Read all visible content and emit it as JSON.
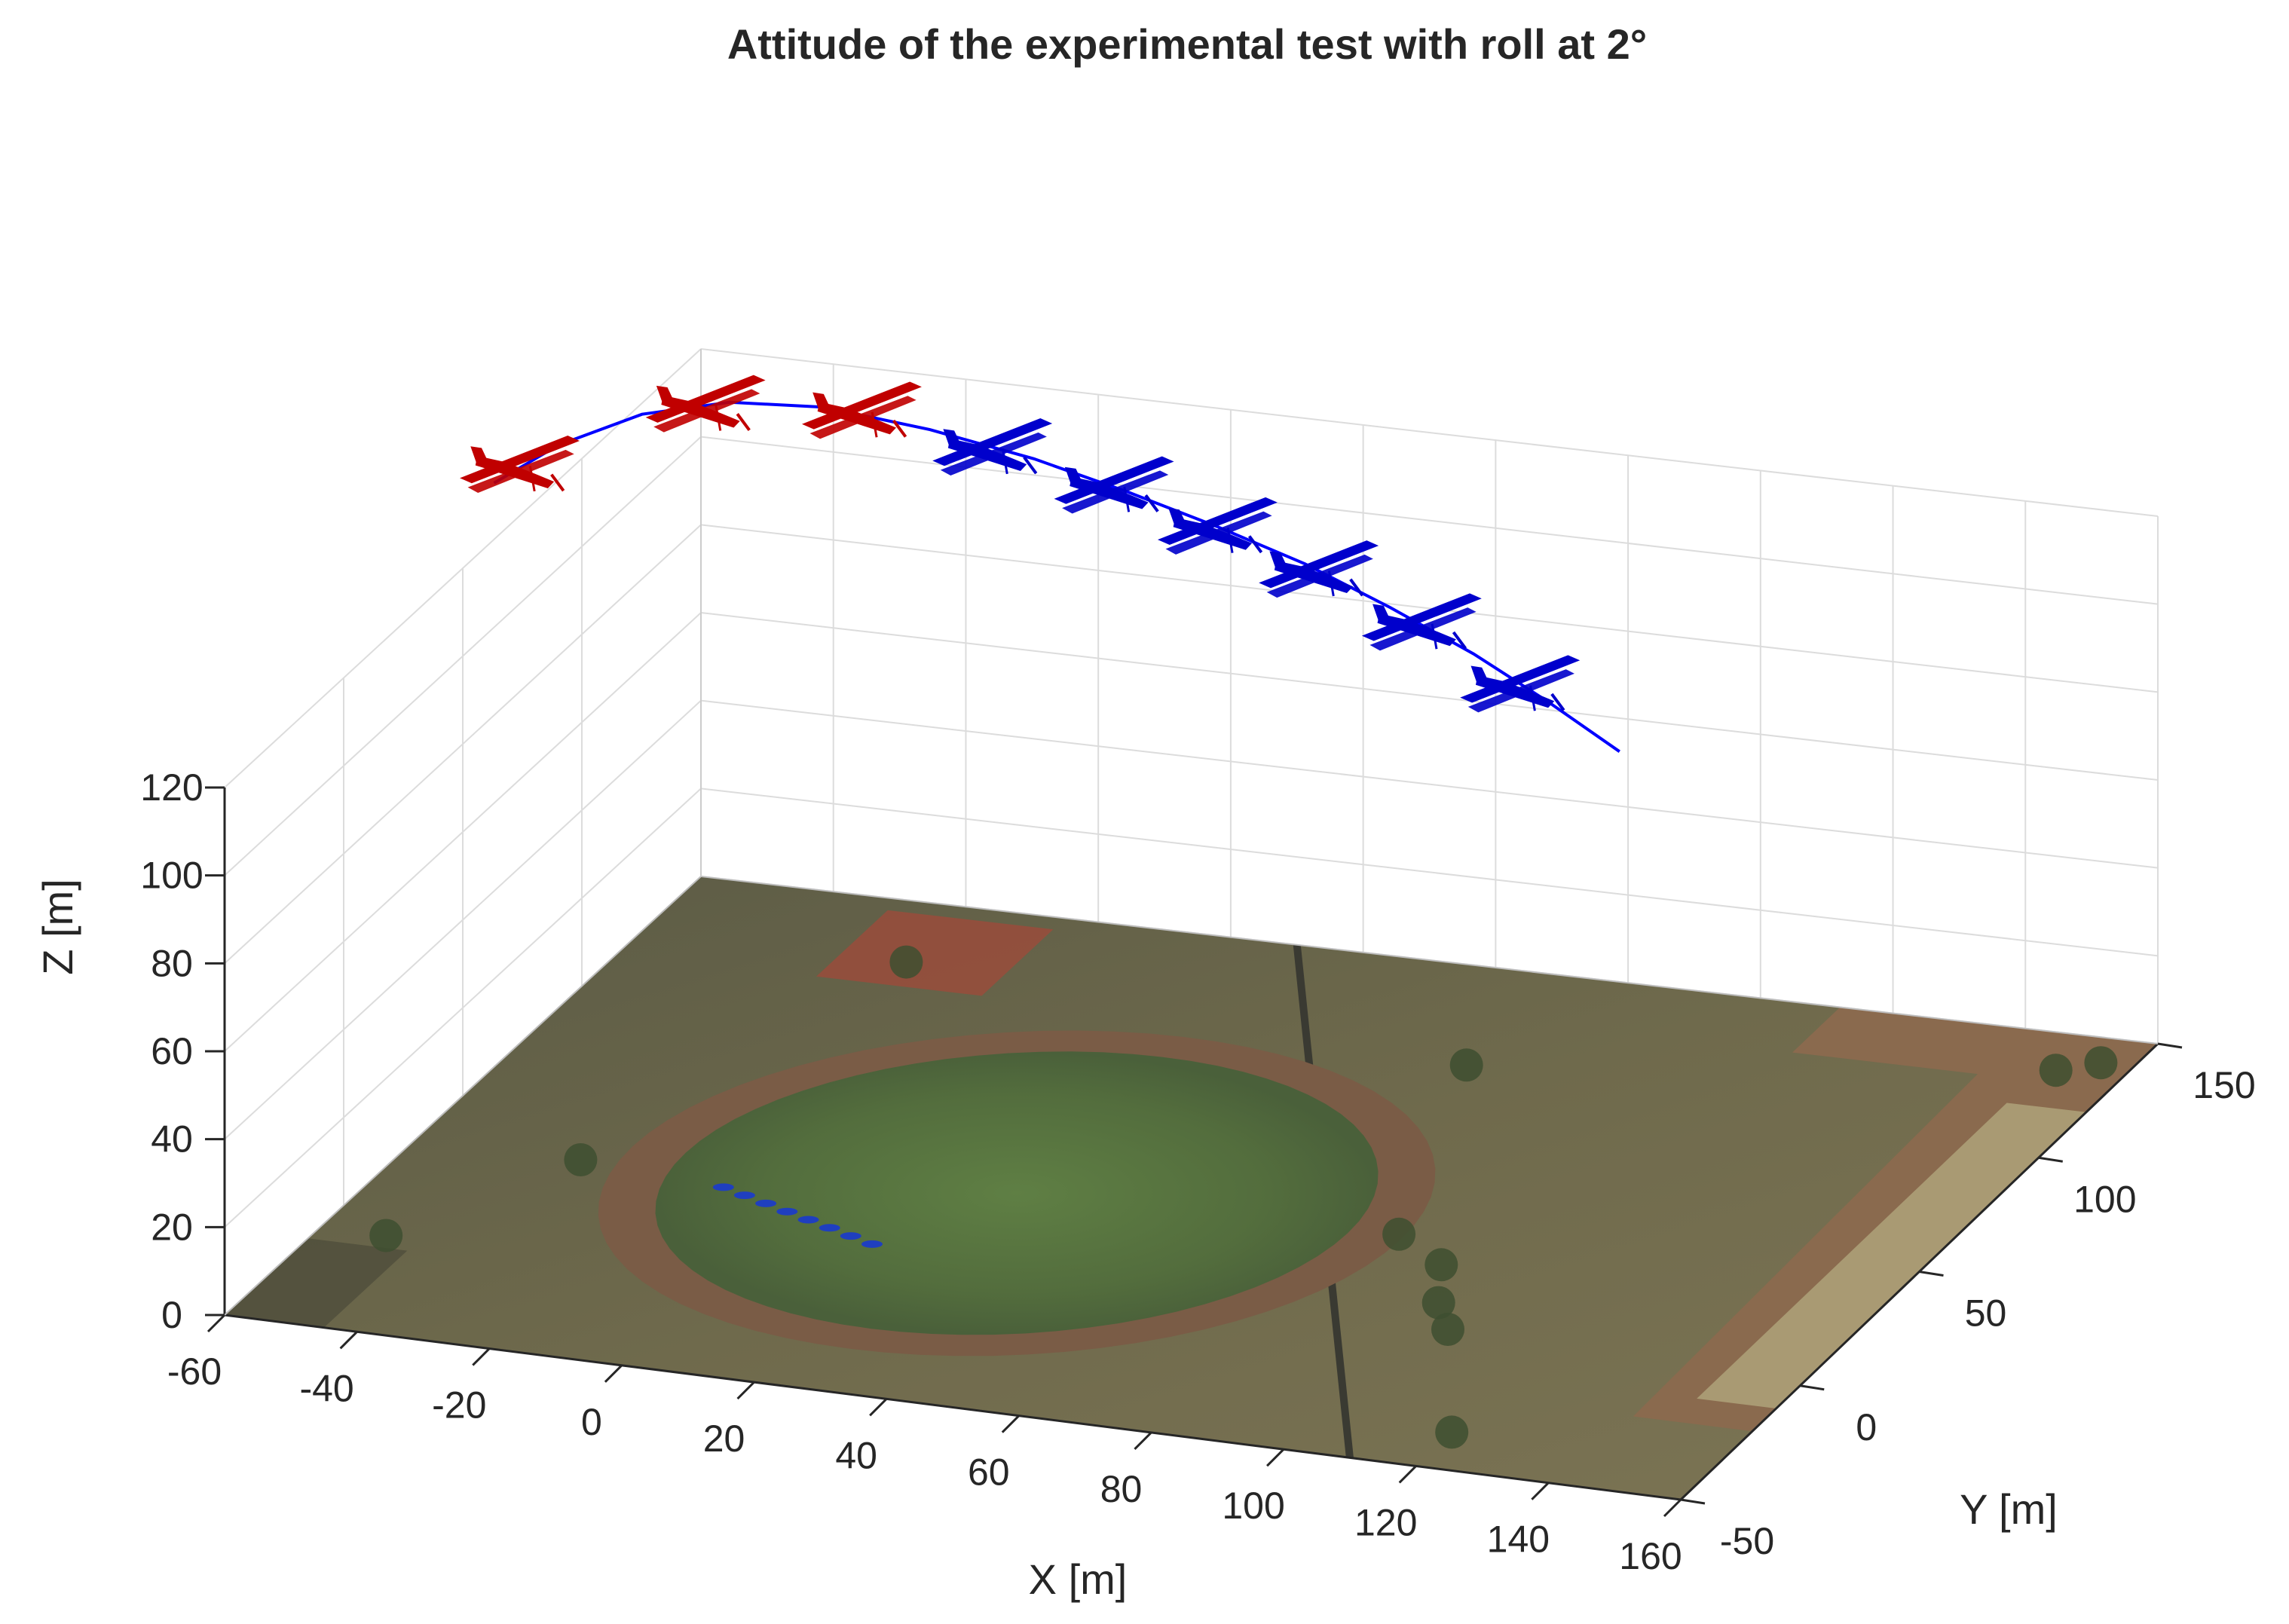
{
  "chart_data": {
    "type": "line3d",
    "title": "Attitude of the experimental test with roll at 2°",
    "xlabel": "X [m]",
    "ylabel": "Y [m]",
    "zlabel": "Z [m]",
    "xlim": [
      -60,
      160
    ],
    "ylim": [
      -50,
      150
    ],
    "zlim": [
      0,
      120
    ],
    "xticks": [
      -60,
      -40,
      -20,
      0,
      20,
      40,
      60,
      80,
      100,
      120,
      140,
      160
    ],
    "yticks": [
      -50,
      0,
      50,
      100,
      150
    ],
    "zticks": [
      0,
      20,
      40,
      60,
      80,
      100,
      120
    ],
    "grid": true,
    "ground_image": "satellite-map-of-field-with-running-track",
    "trajectory": {
      "color": "#0000ff",
      "x": [
        -65,
        -60,
        -52,
        -42,
        -30,
        -15,
        0,
        14,
        28,
        42,
        56,
        70,
        83,
        96
      ],
      "y": [
        77,
        90,
        103,
        112,
        118,
        121,
        123,
        123,
        122,
        120,
        117,
        113,
        108,
        102
      ],
      "z": [
        125,
        128,
        130,
        130,
        128,
        124,
        119,
        114,
        109,
        104,
        98,
        92,
        86,
        80
      ]
    },
    "aircraft": {
      "colors": {
        "early": "#c00000",
        "late": "#0000cc"
      },
      "markers": [
        {
          "x": -63,
          "y": 82,
          "z": 127,
          "phase": "early"
        },
        {
          "x": -45,
          "y": 110,
          "z": 130,
          "phase": "early"
        },
        {
          "x": -25,
          "y": 120,
          "z": 127,
          "phase": "early"
        },
        {
          "x": -6,
          "y": 122,
          "z": 121,
          "phase": "late"
        },
        {
          "x": 12,
          "y": 123,
          "z": 115,
          "phase": "late"
        },
        {
          "x": 28,
          "y": 122,
          "z": 109,
          "phase": "late"
        },
        {
          "x": 44,
          "y": 120,
          "z": 103,
          "phase": "late"
        },
        {
          "x": 61,
          "y": 116,
          "z": 96,
          "phase": "late"
        },
        {
          "x": 78,
          "y": 110,
          "z": 88,
          "phase": "late"
        }
      ]
    }
  }
}
